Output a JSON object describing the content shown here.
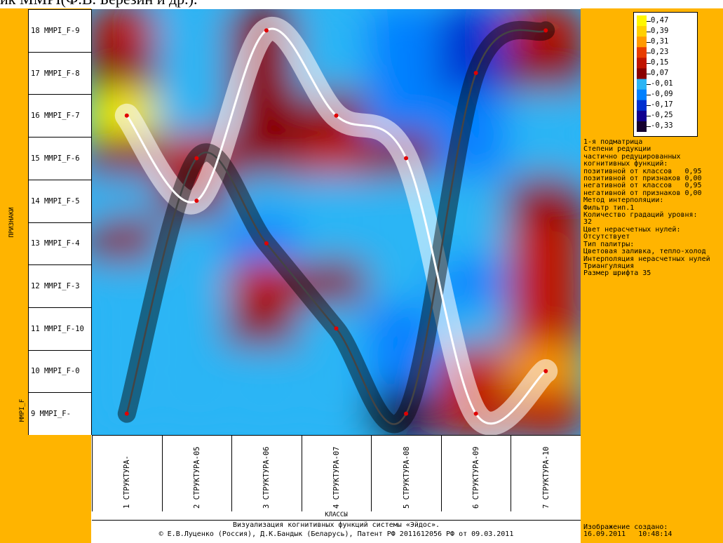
{
  "page": {
    "top_caption": "ик MMPI(Ф.В. Березин и др.)."
  },
  "axes": {
    "y_title": "ПРИЗНАКИ",
    "y_group": "MMPI_F",
    "x_title": "КЛАССЫ"
  },
  "legend": {
    "labels": [
      "0,47",
      "0,39",
      "0,31",
      "0,23",
      "0,15",
      "0,07",
      "-0,01",
      "-0,09",
      "-0,17",
      "-0,25",
      "-0,33"
    ]
  },
  "info_text": "1-я подматрица\nСтепени редукции\nчастично редуцированных\nкогнитивных функций:\nпозитивной от классов   0,95\nпозитивной от признаков 0,00\nнегативной от классов   0,95\nнегативной от признаков 0,00\nМетод интерполяции:\nФильтр тип.1\nКоличество градаций уровня:\n32\nЦвет нерасчетных нулей:\nОтсутствует\nТип палитры:\nЦветовая заливка, тепло-холод\nИнтерполяция нерасчетных нулей\nТриангуляция\nРазмер шрифта 35",
  "footer": {
    "line1": "Визуализация когнитивных функций системы «Эйдос».",
    "line2": "© Е.В.Луценко (Россия), Д.К.Бандык (Беларусь), Патент РФ  2011612056 РФ от 09.03.2011"
  },
  "created": "Изображение создано:\n16.09.2011   10:48:14",
  "chart_data": {
    "type": "heatmap",
    "title": "Визуализация когнитивных функций системы «Эйдос».",
    "xlabel": "КЛАССЫ",
    "ylabel": "ПРИЗНАКИ",
    "x_categories": [
      "1 СТРУКТУРА-",
      "2 СТРУКТУРА-05",
      "3 СТРУКТУРА-06",
      "4 СТРУКТУРА-07",
      "5 СТРУКТУРА-08",
      "6 СТРУКТУРА-09",
      "7 СТРУКТУРА-10"
    ],
    "y_categories": [
      "18 MMPI_F-9",
      "17 MMPI_F-8",
      "16 MMPI_F-7",
      "15 MMPI_F-6",
      "14 MMPI_F-5",
      "13 MMPI_F-4",
      "12 MMPI_F-3",
      "11 MMPI_F-10",
      "10 MMPI_F-0",
      "9 MMPI_F-"
    ],
    "color_range": [
      -0.33,
      0.47
    ],
    "palette": [
      "#fff700",
      "#ffd000",
      "#ff9a00",
      "#e83c00",
      "#c01400",
      "#8a0000",
      "#2bb5f5",
      "#0080ff",
      "#0030d0",
      "#100090",
      "#14002f"
    ],
    "cells": [
      [
        0.15,
        -0.01,
        0.1,
        -0.01,
        -0.09,
        -0.17,
        0.12
      ],
      [
        0.1,
        -0.01,
        0.08,
        -0.01,
        -0.09,
        -0.17,
        0.1
      ],
      [
        0.45,
        -0.01,
        0.1,
        0.05,
        -0.09,
        -0.05,
        -0.01
      ],
      [
        0.1,
        0.12,
        0.1,
        0.12,
        0.1,
        -0.09,
        -0.01
      ],
      [
        -0.01,
        0.1,
        -0.01,
        -0.01,
        -0.01,
        -0.01,
        0.1
      ],
      [
        0.08,
        -0.01,
        -0.12,
        -0.01,
        -0.01,
        -0.01,
        0.12
      ],
      [
        -0.01,
        -0.01,
        0.12,
        0.1,
        -0.01,
        -0.09,
        0.15
      ],
      [
        -0.01,
        -0.01,
        0.1,
        -0.01,
        -0.12,
        -0.01,
        0.15
      ],
      [
        -0.01,
        -0.01,
        -0.01,
        -0.01,
        -0.12,
        0.12,
        0.3
      ],
      [
        -0.01,
        -0.01,
        -0.01,
        -0.01,
        -0.3,
        0.12,
        0.15
      ]
    ],
    "positive_function": [
      {
        "x": "1 СТРУКТУРА-",
        "y": "16 MMPI_F-7"
      },
      {
        "x": "2 СТРУКТУРА-05",
        "y": "14 MMPI_F-5"
      },
      {
        "x": "3 СТРУКТУРА-06",
        "y": "18 MMPI_F-9"
      },
      {
        "x": "4 СТРУКТУРА-07",
        "y": "16 MMPI_F-7"
      },
      {
        "x": "5 СТРУКТУРА-08",
        "y": "15 MMPI_F-6"
      },
      {
        "x": "6 СТРУКТУРА-09",
        "y": "9 MMPI_F-"
      },
      {
        "x": "7 СТРУКТУРА-10",
        "y": "10 MMPI_F-0"
      }
    ],
    "negative_function": [
      {
        "x": "1 СТРУКТУРА-",
        "y": "9 MMPI_F-"
      },
      {
        "x": "2 СТРУКТУРА-05",
        "y": "15 MMPI_F-6"
      },
      {
        "x": "3 СТРУКТУРА-06",
        "y": "13 MMPI_F-4"
      },
      {
        "x": "4 СТРУКТУРА-07",
        "y": "11 MMPI_F-10"
      },
      {
        "x": "5 СТРУКТУРА-08",
        "y": "9 MMPI_F-"
      },
      {
        "x": "6 СТРУКТУРА-09",
        "y": "17 MMPI_F-8"
      },
      {
        "x": "7 СТРУКТУРА-10",
        "y": "18 MMPI_F-9"
      }
    ]
  }
}
